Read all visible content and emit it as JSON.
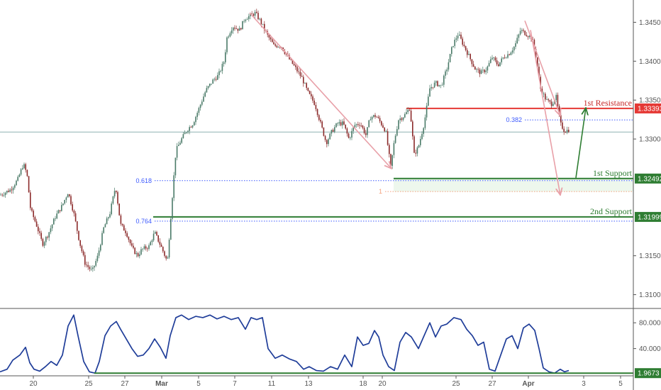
{
  "chart_data": {
    "type": "line",
    "main_pane": {
      "series_type": "candlestick",
      "ylim": [
        1.3085,
        1.3475
      ],
      "y_ticks": [
        {
          "value": 1.345,
          "label": "1.34500"
        },
        {
          "value": 1.34,
          "label": "1.34000"
        },
        {
          "value": 1.335,
          "label": "1.33500"
        },
        {
          "value": 1.33,
          "label": "1.33000"
        },
        {
          "value": 1.315,
          "label": "1.31500"
        },
        {
          "value": 1.31,
          "label": "1.31000"
        }
      ],
      "price_path": [
        [
          0,
          1.3228
        ],
        [
          15,
          1.3235
        ],
        [
          25,
          1.3248
        ],
        [
          33,
          1.3268
        ],
        [
          38,
          1.3255
        ],
        [
          43,
          1.321
        ],
        [
          52,
          1.3188
        ],
        [
          60,
          1.3165
        ],
        [
          68,
          1.3178
        ],
        [
          78,
          1.32
        ],
        [
          88,
          1.3215
        ],
        [
          96,
          1.3232
        ],
        [
          104,
          1.3205
        ],
        [
          112,
          1.3168
        ],
        [
          120,
          1.314
        ],
        [
          130,
          1.313
        ],
        [
          138,
          1.315
        ],
        [
          146,
          1.3185
        ],
        [
          155,
          1.3205
        ],
        [
          163,
          1.324
        ],
        [
          170,
          1.319
        ],
        [
          178,
          1.318
        ],
        [
          186,
          1.316
        ],
        [
          194,
          1.315
        ],
        [
          200,
          1.3158
        ],
        [
          210,
          1.3162
        ],
        [
          218,
          1.318
        ],
        [
          228,
          1.316
        ],
        [
          236,
          1.3142
        ],
        [
          242,
          1.3215
        ],
        [
          248,
          1.3285
        ],
        [
          256,
          1.33
        ],
        [
          264,
          1.3312
        ],
        [
          272,
          1.332
        ],
        [
          280,
          1.3338
        ],
        [
          290,
          1.3362
        ],
        [
          300,
          1.3375
        ],
        [
          308,
          1.3382
        ],
        [
          316,
          1.34
        ],
        [
          320,
          1.343
        ],
        [
          328,
          1.3445
        ],
        [
          338,
          1.344
        ],
        [
          345,
          1.3455
        ],
        [
          352,
          1.3458
        ],
        [
          360,
          1.3462
        ],
        [
          368,
          1.345
        ],
        [
          376,
          1.3435
        ],
        [
          386,
          1.342
        ],
        [
          396,
          1.342
        ],
        [
          406,
          1.3405
        ],
        [
          416,
          1.3392
        ],
        [
          426,
          1.3378
        ],
        [
          434,
          1.336
        ],
        [
          444,
          1.3345
        ],
        [
          452,
          1.332
        ],
        [
          460,
          1.3295
        ],
        [
          468,
          1.331
        ],
        [
          476,
          1.332
        ],
        [
          484,
          1.332
        ],
        [
          492,
          1.33
        ],
        [
          500,
          1.3318
        ],
        [
          508,
          1.332
        ],
        [
          516,
          1.3305
        ],
        [
          522,
          1.3328
        ],
        [
          530,
          1.333
        ],
        [
          536,
          1.3322
        ],
        [
          544,
          1.331
        ],
        [
          551,
          1.3263
        ],
        [
          556,
          1.3298
        ],
        [
          562,
          1.3325
        ],
        [
          570,
          1.333
        ],
        [
          578,
          1.334
        ],
        [
          584,
          1.328
        ],
        [
          590,
          1.329
        ],
        [
          598,
          1.332
        ],
        [
          606,
          1.3365
        ],
        [
          614,
          1.3372
        ],
        [
          622,
          1.3368
        ],
        [
          630,
          1.339
        ],
        [
          638,
          1.342
        ],
        [
          646,
          1.3435
        ],
        [
          654,
          1.342
        ],
        [
          662,
          1.3405
        ],
        [
          670,
          1.339
        ],
        [
          678,
          1.3385
        ],
        [
          686,
          1.339
        ],
        [
          694,
          1.3405
        ],
        [
          702,
          1.3395
        ],
        [
          710,
          1.3405
        ],
        [
          718,
          1.341
        ],
        [
          726,
          1.342
        ],
        [
          734,
          1.344
        ],
        [
          742,
          1.3435
        ],
        [
          750,
          1.343
        ],
        [
          756,
          1.3405
        ],
        [
          762,
          1.3365
        ],
        [
          770,
          1.335
        ],
        [
          778,
          1.3345
        ],
        [
          784,
          1.3355
        ],
        [
          790,
          1.332
        ],
        [
          796,
          1.331
        ],
        [
          802,
          1.3312
        ]
      ],
      "horizontal_levels": [
        {
          "name": "1st Resistance",
          "value": 1.33393,
          "color": "#e53935",
          "label": "1.33393"
        },
        {
          "name": "1st Support",
          "value": 1.32492,
          "color": "#2e7d32",
          "label": "1.32492"
        },
        {
          "name": "2nd Support",
          "value": 1.31999,
          "color": "#2e7d32",
          "label": "1.31999"
        }
      ],
      "last_price_line": 1.3309,
      "fibonacci": [
        {
          "ratio": "0.382",
          "value": 1.33245,
          "x_start": 740
        },
        {
          "ratio": "0.618",
          "value": 1.32465,
          "x_start": 218
        },
        {
          "ratio": "0.764",
          "value": 1.31945,
          "x_start": 218
        },
        {
          "ratio": "1",
          "value": 1.32325,
          "x_start": 543
        }
      ],
      "support_zone": {
        "from": 1.32492,
        "to": 1.32325
      },
      "arrows": [
        {
          "from": [
            352,
            1.3462
          ],
          "to": [
            552,
            1.3262
          ],
          "color": "#e8a0a8"
        },
        {
          "from": [
            740,
            1.3452
          ],
          "to": [
            790,
            1.333
          ],
          "color": "#e8a0a8"
        },
        {
          "from": [
            748,
            1.344
          ],
          "to": [
            790,
            1.3228
          ],
          "color": "#e8a0a8"
        },
        {
          "from": [
            812,
            1.325
          ],
          "to": [
            826,
            1.334
          ],
          "color": "#2e7d32"
        }
      ]
    },
    "oscillator_pane": {
      "ylim": [
        0,
        100
      ],
      "y_ticks": [
        {
          "value": 80,
          "label": "80.0000"
        },
        {
          "value": 40,
          "label": "40.0000"
        }
      ],
      "current_value": 1.9673,
      "current_label": "1.9673",
      "support_line": 1.9673,
      "values": [
        [
          0,
          4
        ],
        [
          10,
          8
        ],
        [
          18,
          22
        ],
        [
          28,
          30
        ],
        [
          36,
          42
        ],
        [
          42,
          18
        ],
        [
          48,
          8
        ],
        [
          56,
          5
        ],
        [
          64,
          12
        ],
        [
          72,
          20
        ],
        [
          80,
          14
        ],
        [
          88,
          30
        ],
        [
          96,
          75
        ],
        [
          104,
          92
        ],
        [
          110,
          60
        ],
        [
          118,
          20
        ],
        [
          126,
          4
        ],
        [
          134,
          2
        ],
        [
          140,
          20
        ],
        [
          148,
          60
        ],
        [
          156,
          75
        ],
        [
          164,
          82
        ],
        [
          170,
          70
        ],
        [
          178,
          55
        ],
        [
          186,
          40
        ],
        [
          194,
          28
        ],
        [
          202,
          30
        ],
        [
          210,
          40
        ],
        [
          218,
          55
        ],
        [
          226,
          42
        ],
        [
          234,
          25
        ],
        [
          240,
          60
        ],
        [
          248,
          88
        ],
        [
          256,
          92
        ],
        [
          266,
          85
        ],
        [
          276,
          90
        ],
        [
          286,
          88
        ],
        [
          296,
          92
        ],
        [
          306,
          86
        ],
        [
          316,
          90
        ],
        [
          326,
          85
        ],
        [
          336,
          88
        ],
        [
          346,
          70
        ],
        [
          354,
          88
        ],
        [
          362,
          85
        ],
        [
          370,
          88
        ],
        [
          378,
          40
        ],
        [
          388,
          25
        ],
        [
          398,
          30
        ],
        [
          408,
          24
        ],
        [
          418,
          20
        ],
        [
          428,
          8
        ],
        [
          436,
          12
        ],
        [
          446,
          6
        ],
        [
          456,
          5
        ],
        [
          466,
          12
        ],
        [
          476,
          8
        ],
        [
          486,
          30
        ],
        [
          496,
          12
        ],
        [
          504,
          58
        ],
        [
          512,
          45
        ],
        [
          520,
          48
        ],
        [
          528,
          68
        ],
        [
          534,
          58
        ],
        [
          540,
          30
        ],
        [
          548,
          12
        ],
        [
          556,
          6
        ],
        [
          564,
          50
        ],
        [
          572,
          65
        ],
        [
          580,
          58
        ],
        [
          590,
          40
        ],
        [
          598,
          60
        ],
        [
          606,
          80
        ],
        [
          614,
          58
        ],
        [
          622,
          75
        ],
        [
          630,
          78
        ],
        [
          640,
          88
        ],
        [
          650,
          85
        ],
        [
          658,
          70
        ],
        [
          666,
          60
        ],
        [
          674,
          45
        ],
        [
          682,
          50
        ],
        [
          690,
          8
        ],
        [
          698,
          5
        ],
        [
          706,
          30
        ],
        [
          714,
          55
        ],
        [
          722,
          60
        ],
        [
          730,
          40
        ],
        [
          738,
          72
        ],
        [
          746,
          78
        ],
        [
          754,
          68
        ],
        [
          760,
          40
        ],
        [
          766,
          10
        ],
        [
          774,
          4
        ],
        [
          782,
          2
        ],
        [
          790,
          8
        ],
        [
          796,
          4
        ],
        [
          802,
          6
        ]
      ]
    },
    "x_axis": {
      "ticks": [
        {
          "x": 47,
          "label": "20"
        },
        {
          "x": 125,
          "label": "25"
        },
        {
          "x": 176,
          "label": "27"
        },
        {
          "x": 228,
          "label": "Mar"
        },
        {
          "x": 280,
          "label": "5"
        },
        {
          "x": 331,
          "label": "7"
        },
        {
          "x": 383,
          "label": "11"
        },
        {
          "x": 435,
          "label": "13"
        },
        {
          "x": 512,
          "label": "18"
        },
        {
          "x": 539,
          "label": "20"
        },
        {
          "x": 643,
          "label": "25"
        },
        {
          "x": 694,
          "label": "27"
        },
        {
          "x": 745,
          "label": "Apr"
        },
        {
          "x": 823,
          "label": "3"
        },
        {
          "x": 875,
          "label": "5"
        }
      ]
    },
    "annotations": [
      {
        "text": "1st Resistance",
        "level": 1.33393,
        "color": "#c62828"
      },
      {
        "text": "1st Support",
        "level": 1.32492,
        "color": "#2e7d32"
      },
      {
        "text": "2nd Support",
        "level": 1.31999,
        "color": "#2e7d32"
      }
    ]
  },
  "colors": {
    "up_candle": "#4a7a68",
    "down_candle": "#8b2a2a",
    "oscillator_line": "#1f3d99",
    "axis_line": "#555555",
    "price_line": "#7fa8a8",
    "fib_line": "#3d5afe"
  }
}
